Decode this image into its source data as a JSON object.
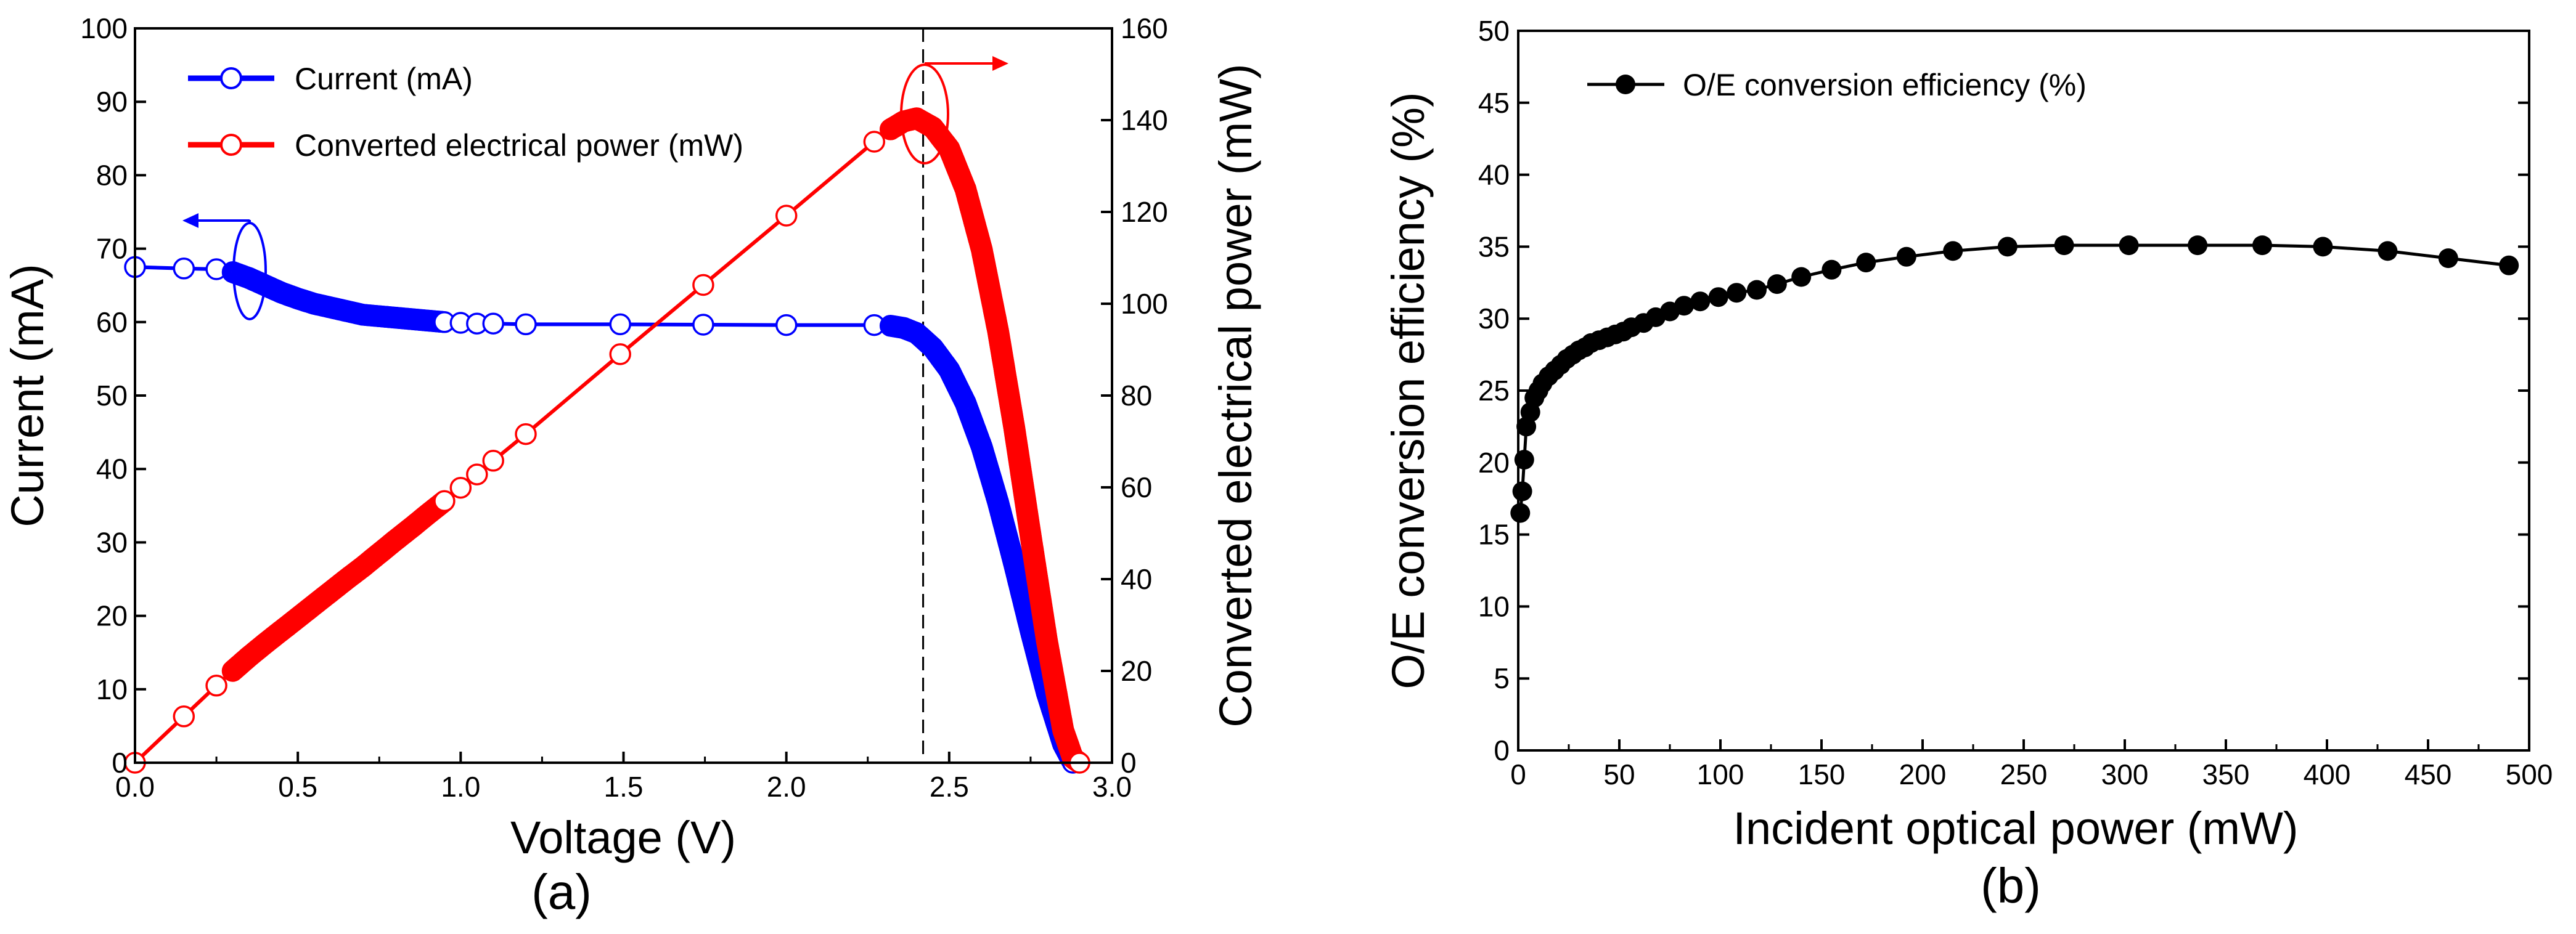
{
  "chart_data": [
    {
      "type": "line",
      "panel_label": "(a)",
      "title": "",
      "xlabel": "Voltage (V)",
      "ylabel": "Current (mA)",
      "y2label": "Converted electrical power (mW)",
      "xlim": [
        0.0,
        3.0
      ],
      "ylim": [
        0,
        100
      ],
      "y2lim": [
        0,
        160
      ],
      "x_ticks": [
        "0.0",
        "0.5",
        "1.0",
        "1.5",
        "2.0",
        "2.5",
        "3.0"
      ],
      "y_ticks": [
        "0",
        "10",
        "20",
        "30",
        "40",
        "50",
        "60",
        "70",
        "80",
        "90",
        "100"
      ],
      "y2_ticks": [
        "0",
        "20",
        "40",
        "60",
        "80",
        "100",
        "120",
        "140",
        "160"
      ],
      "legend_position": "top-left",
      "vertical_marker_x": 2.42,
      "colors": {
        "current": "#0000ff",
        "power": "#ff0000",
        "marker_line": "#000000"
      },
      "series": [
        {
          "name": "Current (mA)",
          "axis": "left",
          "color": "#0000ff",
          "x": [
            0.0,
            0.15,
            0.25,
            0.3,
            0.35,
            0.4,
            0.45,
            0.5,
            0.55,
            0.6,
            0.65,
            0.7,
            0.75,
            0.8,
            0.85,
            0.9,
            0.95,
            1.0,
            1.05,
            1.1,
            1.2,
            1.49,
            2.0,
            2.27,
            2.32,
            2.36,
            2.4,
            2.45,
            2.5,
            2.55,
            2.6,
            2.65,
            2.7,
            2.75,
            2.8,
            2.85,
            2.88
          ],
          "values": [
            67.5,
            67.3,
            67.2,
            66.8,
            66.0,
            65.0,
            64.0,
            63.2,
            62.5,
            62.0,
            61.5,
            61.0,
            60.8,
            60.6,
            60.4,
            60.2,
            60.0,
            59.9,
            59.8,
            59.8,
            59.7,
            59.7,
            59.6,
            59.6,
            59.5,
            59.2,
            58.5,
            56.5,
            53.5,
            49.0,
            43.0,
            35.5,
            27.0,
            18.0,
            9.5,
            2.5,
            0.0
          ]
        },
        {
          "name": "Converted electrical power (mW)",
          "axis": "right",
          "color": "#ff0000",
          "x": [
            0.0,
            0.15,
            0.25,
            0.3,
            0.35,
            0.4,
            0.45,
            0.5,
            0.55,
            0.6,
            0.65,
            0.7,
            0.75,
            0.8,
            0.85,
            0.9,
            0.95,
            1.0,
            1.05,
            1.1,
            1.2,
            1.49,
            2.0,
            2.27,
            2.32,
            2.36,
            2.4,
            2.45,
            2.5,
            2.55,
            2.6,
            2.65,
            2.7,
            2.75,
            2.8,
            2.85,
            2.88,
            2.9
          ],
          "values": [
            0.0,
            10.1,
            16.8,
            20.0,
            23.1,
            26.0,
            28.8,
            31.6,
            34.4,
            37.2,
            40.0,
            42.7,
            45.6,
            48.5,
            51.3,
            54.2,
            57.0,
            59.9,
            62.8,
            65.8,
            71.6,
            89.0,
            119.2,
            135.3,
            138.0,
            139.7,
            140.4,
            138.4,
            133.8,
            125.0,
            111.8,
            94.1,
            72.9,
            49.5,
            26.6,
            7.1,
            1.0,
            0.0
          ]
        }
      ],
      "annotations": [
        "blue ellipse with left arrow marking Current curve (left axis)",
        "red ellipse with right arrow marking Power curve (right axis)",
        "dashed vertical line at maximum power point"
      ]
    },
    {
      "type": "line",
      "panel_label": "(b)",
      "title": "",
      "xlabel": "Incident optical power (mW)",
      "ylabel": "O/E conversion efficiency (%)",
      "xlim": [
        0,
        500
      ],
      "ylim": [
        0,
        50
      ],
      "x_ticks": [
        "0",
        "50",
        "100",
        "150",
        "200",
        "250",
        "300",
        "350",
        "400",
        "450",
        "500"
      ],
      "y_ticks": [
        "0",
        "5",
        "10",
        "15",
        "20",
        "25",
        "30",
        "35",
        "40",
        "45",
        "50"
      ],
      "legend_position": "top-left",
      "colors": {
        "series": "#000000"
      },
      "series": [
        {
          "name": "O/E conversion efficiency (%)",
          "color": "#000000",
          "x": [
            1,
            2,
            3,
            4,
            6,
            8,
            10,
            12,
            15,
            18,
            21,
            24,
            27,
            30,
            33,
            36,
            40,
            44,
            48,
            52,
            56,
            62,
            68,
            75,
            82,
            90,
            99,
            108,
            118,
            128,
            140,
            155,
            172,
            192,
            215,
            242,
            270,
            302,
            336,
            368,
            398,
            430,
            460,
            490
          ],
          "values": [
            16.5,
            18.0,
            20.2,
            22.5,
            23.5,
            24.5,
            25.0,
            25.5,
            26.0,
            26.4,
            26.8,
            27.2,
            27.5,
            27.8,
            28.0,
            28.3,
            28.5,
            28.7,
            28.9,
            29.1,
            29.4,
            29.7,
            30.1,
            30.5,
            30.9,
            31.2,
            31.5,
            31.8,
            32.0,
            32.4,
            32.9,
            33.4,
            33.9,
            34.3,
            34.7,
            35.0,
            35.1,
            35.1,
            35.1,
            35.1,
            35.0,
            34.7,
            34.2,
            33.7
          ]
        }
      ]
    }
  ]
}
